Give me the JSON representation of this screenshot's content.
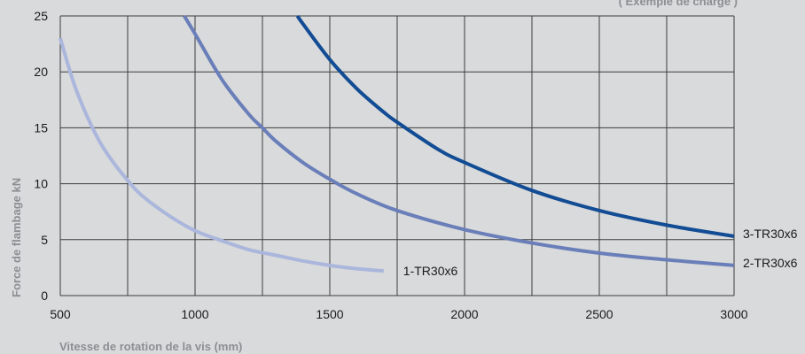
{
  "chart_data": {
    "type": "line",
    "title": "",
    "corner_note": "( Exemple de charge )",
    "xlabel": "Vitesse de rotation de la vis (mm)",
    "ylabel": "Force de flambage kN",
    "xlim": [
      500,
      3000
    ],
    "ylim": [
      0,
      25
    ],
    "x_ticks": [
      500,
      1000,
      1500,
      2000,
      2500,
      3000
    ],
    "y_ticks": [
      0,
      5,
      10,
      15,
      20,
      25
    ],
    "x_grid": [
      500,
      750,
      1000,
      1250,
      1500,
      1750,
      2000,
      2250,
      2500,
      2750,
      3000
    ],
    "grid": true,
    "legend": "none",
    "series": [
      {
        "name": "1-TR30x6",
        "color": "#aab6dc",
        "x": [
          500,
          550,
          600,
          650,
          700,
          750,
          800,
          900,
          1000,
          1100,
          1200,
          1300,
          1400,
          1500,
          1600,
          1700
        ],
        "values": [
          23,
          19,
          16,
          13.6,
          11.8,
          10.3,
          9.0,
          7.2,
          5.8,
          4.9,
          4.1,
          3.6,
          3.1,
          2.7,
          2.4,
          2.2
        ]
      },
      {
        "name": "2-TR30x6",
        "color": "#6a7fb9",
        "x": [
          960,
          1000,
          1100,
          1200,
          1250,
          1300,
          1400,
          1500,
          1600,
          1750,
          2000,
          2250,
          2500,
          2750,
          3000
        ],
        "values": [
          25,
          23.4,
          19.3,
          16.2,
          15.0,
          13.8,
          11.9,
          10.4,
          9.1,
          7.6,
          5.9,
          4.7,
          3.8,
          3.2,
          2.7
        ]
      },
      {
        "name": "3-TR30x6",
        "color": "#124c94",
        "x": [
          1380,
          1400,
          1500,
          1600,
          1700,
          1750,
          1900,
          2000,
          2250,
          2500,
          2750,
          3000
        ],
        "values": [
          25,
          24.3,
          21.1,
          18.5,
          16.4,
          15.5,
          13.1,
          11.9,
          9.4,
          7.6,
          6.3,
          5.3
        ]
      }
    ]
  }
}
